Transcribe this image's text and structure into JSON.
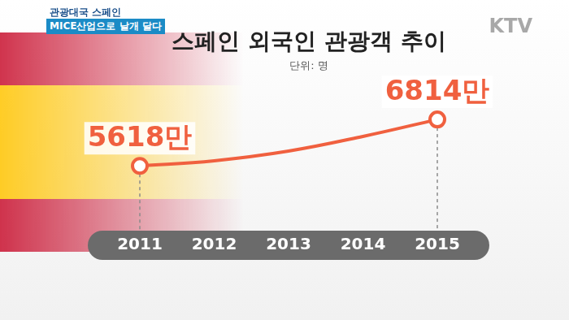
{
  "caption": {
    "topic": "관광대국 스페인",
    "headline": "MICE산업으로 날개 달다"
  },
  "logo": "KTV",
  "chart_data": {
    "type": "line",
    "title": "스페인 외국인 관광객 추이",
    "subtitle": "단위: 명",
    "categories": [
      "2011",
      "2012",
      "2013",
      "2014",
      "2015"
    ],
    "values": [
      5618,
      5751,
      6000,
      6378,
      6814
    ],
    "value_labels": [
      "5618만",
      null,
      null,
      null,
      "6814만"
    ],
    "data_labels": true,
    "color": "#f0603f",
    "marker": "circle",
    "ylim": [
      4200,
      7800
    ],
    "tick_labels": "x",
    "grid": false
  }
}
